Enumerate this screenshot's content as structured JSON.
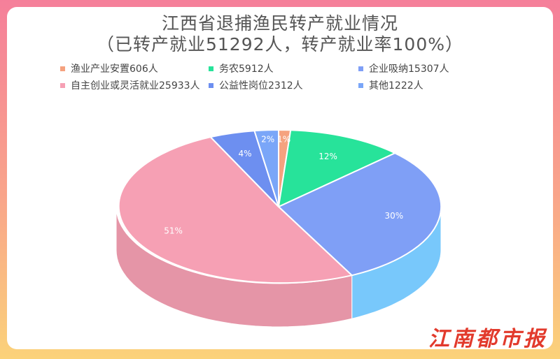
{
  "title_line1": "江西省退捕渔民转产就业情况",
  "title_line2": "（已转产就业51292人，转产就业率100%）",
  "brand_logo": "江南都市报",
  "chart_data": {
    "type": "pie",
    "slices": [
      {
        "name": "渔业产业安置606人",
        "value": 606,
        "pct_label": "1%",
        "color": "#f5a27f"
      },
      {
        "name": "务农5912人",
        "value": 5912,
        "pct_label": "12%",
        "color": "#27e39a"
      },
      {
        "name": "企业吸纳15307人",
        "value": 15307,
        "pct_label": "30%",
        "color": "#7f9ff6"
      },
      {
        "name": "自主创业或灵活就业25933人",
        "value": 25933,
        "pct_label": "51%",
        "color": "#f6a0b4"
      },
      {
        "name": "公益性岗位2312人",
        "value": 2312,
        "pct_label": "4%",
        "color": "#6d8ff0"
      },
      {
        "name": "其他1222人",
        "value": 1222,
        "pct_label": "2%",
        "color": "#7aa6f8"
      }
    ]
  }
}
